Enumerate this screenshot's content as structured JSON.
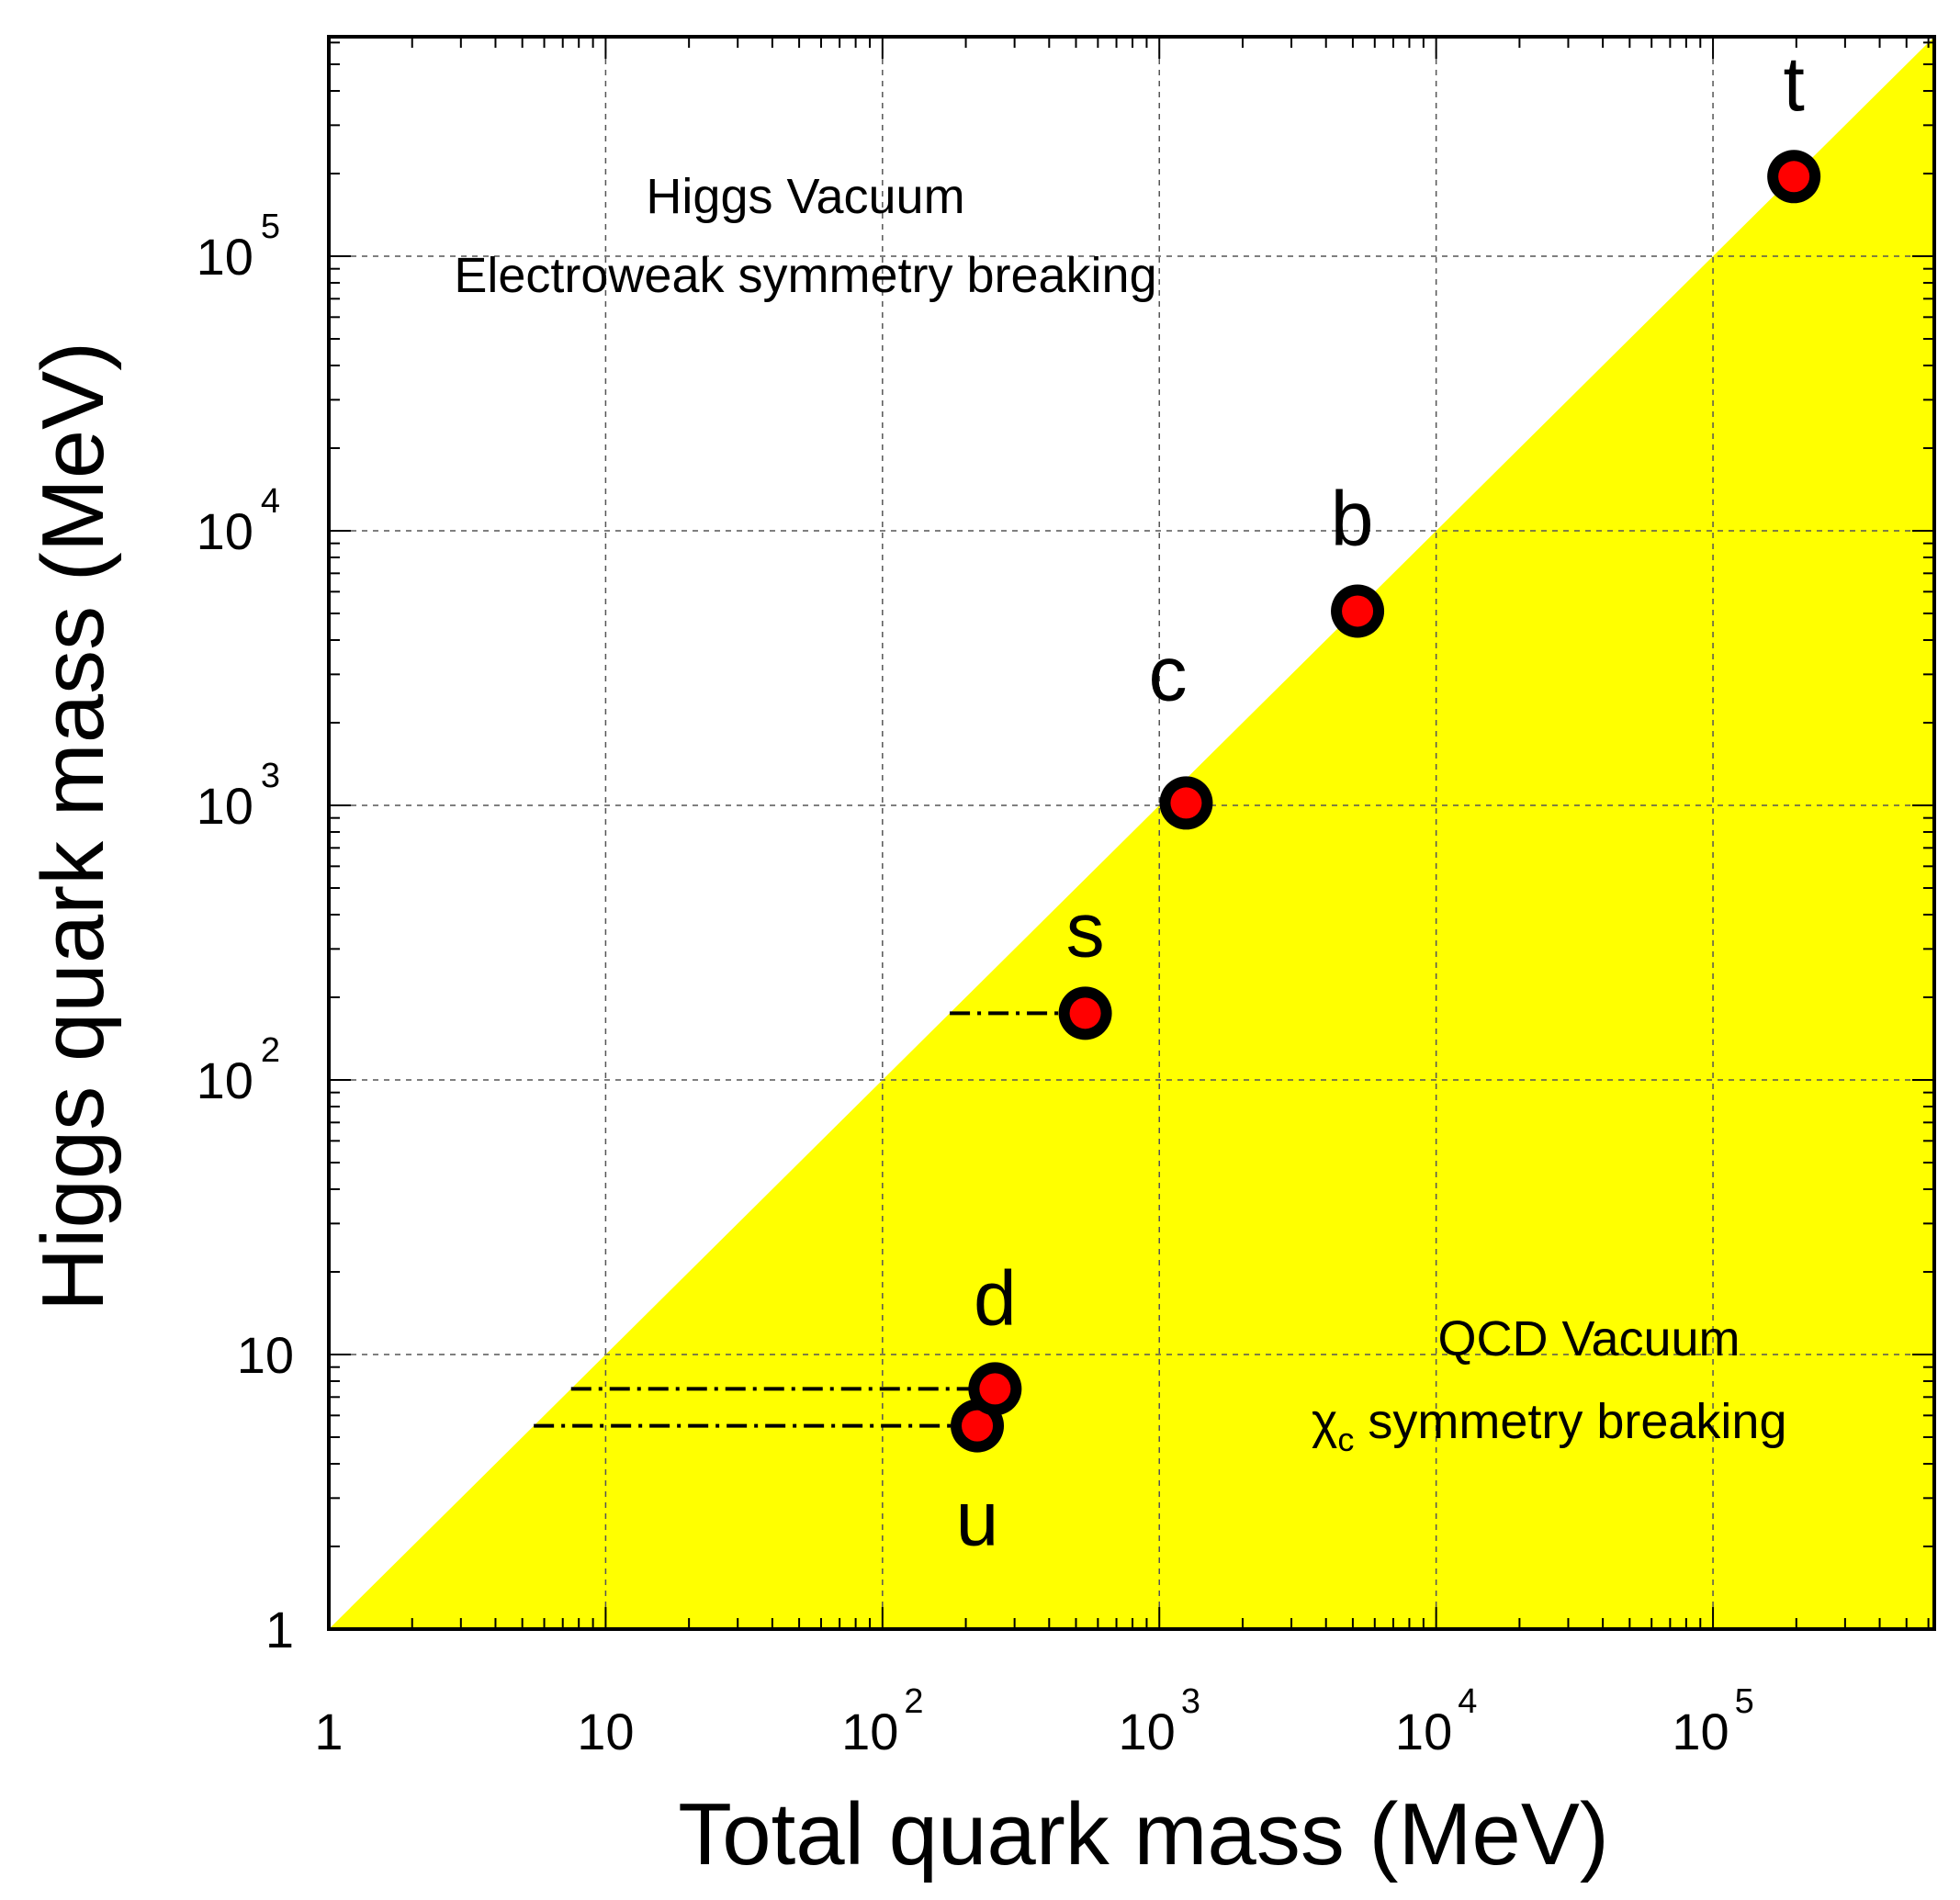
{
  "chart_data": {
    "type": "scatter",
    "xscale": "log",
    "yscale": "log",
    "xlim": [
      1,
      630000
    ],
    "ylim": [
      1,
      630000
    ],
    "xlabel": "Total quark mass (MeV)",
    "ylabel": "Higgs quark mass (MeV)",
    "x_ticks": [
      {
        "base": "1",
        "exp": ""
      },
      {
        "base": "10",
        "exp": ""
      },
      {
        "base": "10",
        "exp": "2"
      },
      {
        "base": "10",
        "exp": "3"
      },
      {
        "base": "10",
        "exp": "4"
      },
      {
        "base": "10",
        "exp": "5"
      }
    ],
    "y_ticks": [
      {
        "base": "1",
        "exp": ""
      },
      {
        "base": "10",
        "exp": ""
      },
      {
        "base": "10",
        "exp": "2"
      },
      {
        "base": "10",
        "exp": "3"
      },
      {
        "base": "10",
        "exp": "4"
      },
      {
        "base": "10",
        "exp": "5"
      }
    ],
    "grid": true,
    "region": {
      "fill": "#ffff00",
      "description_side": "below diagonal"
    },
    "point_colors": {
      "fill": "#ff0000",
      "edge": "#000000"
    },
    "series": [
      {
        "name": "u",
        "x": 220,
        "y": 5.5,
        "from_x": 5.5
      },
      {
        "name": "d",
        "x": 255,
        "y": 7.5,
        "from_x": 7.5
      },
      {
        "name": "s",
        "x": 540,
        "y": 175,
        "from_x": 175
      },
      {
        "name": "c",
        "x": 1250,
        "y": 1020,
        "from_x": null
      },
      {
        "name": "b",
        "x": 5200,
        "y": 5100,
        "from_x": null
      },
      {
        "name": "t",
        "x": 196000,
        "y": 195000,
        "from_x": null
      }
    ],
    "annotations": {
      "higgs_title": "Higgs Vacuum",
      "higgs_sub": "Electroweak symmetry breaking",
      "qcd_title": "QCD Vacuum",
      "qcd_chi": "χ",
      "qcd_chi_sub": "c",
      "qcd_sub": " symmetry breaking"
    }
  }
}
